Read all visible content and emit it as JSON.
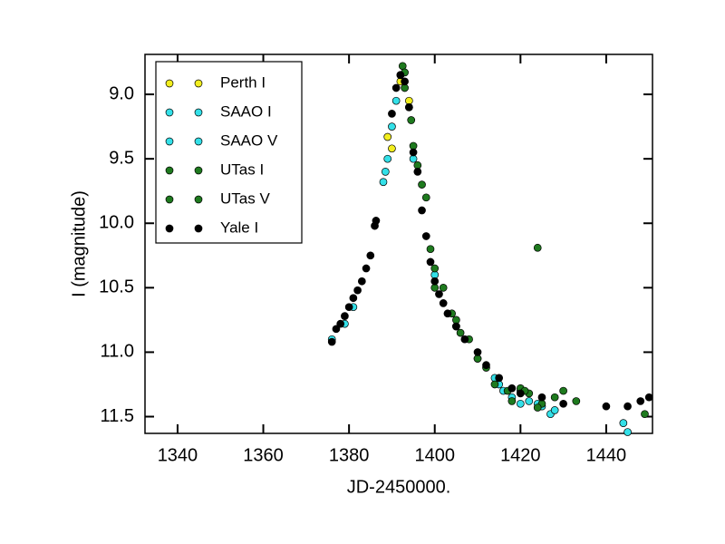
{
  "chart_data": {
    "type": "scatter",
    "x_label": "JD-2450000.",
    "y_label": "I (magnitude)",
    "xlim": [
      1332.4,
      1450.8
    ],
    "xticks": [
      1340,
      1360,
      1380,
      1400,
      1420,
      1440
    ],
    "ylim": [
      11.63,
      8.69
    ],
    "yticks": [
      {
        "value": 9,
        "label": "9.0"
      },
      9.5,
      {
        "value": 10,
        "label": "10.0"
      },
      10.5,
      {
        "value": 11,
        "label": "11.0"
      },
      11.5
    ],
    "legend": "upper left",
    "series": [
      {
        "name": "Perth I",
        "color": "#f2ee1e",
        "x": [
          1389,
          1390,
          1392,
          1394
        ],
        "values": [
          9.33,
          9.42,
          8.9,
          9.05
        ]
      },
      {
        "name": "SAAO I",
        "color": "#33e0e8",
        "x": [
          1376,
          1379,
          1388,
          1388.5,
          1389,
          1390,
          1391,
          1392,
          1400,
          1405,
          1410,
          1414,
          1416,
          1418,
          1420,
          1422,
          1425,
          1427,
          1428,
          1444,
          1445
        ],
        "values": [
          10.9,
          10.78,
          9.68,
          9.6,
          9.5,
          9.25,
          9.05,
          8.85,
          10.4,
          10.8,
          11.05,
          11.2,
          11.3,
          11.35,
          11.3,
          11.38,
          11.42,
          11.48,
          11.45,
          11.55,
          11.62
        ]
      },
      {
        "name": "SAAO V",
        "color": "#33e0e8",
        "x": [
          1381,
          1395,
          1415,
          1420,
          1424
        ],
        "values": [
          10.65,
          9.5,
          11.25,
          11.4,
          11.4
        ]
      },
      {
        "name": "UTas I",
        "color": "#1e7a1e",
        "x": [
          1392.5,
          1393,
          1394,
          1394.5,
          1396,
          1397,
          1398,
          1399,
          1400,
          1402,
          1404,
          1406,
          1408,
          1410,
          1412,
          1414,
          1417,
          1420,
          1422,
          1424,
          1425,
          1428,
          1430,
          1433,
          1449
        ],
        "values": [
          8.78,
          8.83,
          9.1,
          9.2,
          9.55,
          9.7,
          9.8,
          10.2,
          10.35,
          10.5,
          10.7,
          10.85,
          10.9,
          11.05,
          11.12,
          11.25,
          11.3,
          11.28,
          11.32,
          10.19,
          11.4,
          11.35,
          11.3,
          11.38,
          11.48
        ]
      },
      {
        "name": "UTas V",
        "color": "#1e7a1e",
        "x": [
          1393,
          1395,
          1400,
          1405,
          1418,
          1421,
          1424
        ],
        "values": [
          8.95,
          9.4,
          10.5,
          10.75,
          11.38,
          11.3,
          11.43
        ]
      },
      {
        "name": "Yale I",
        "color": "#000000",
        "x": [
          1376,
          1377,
          1378,
          1379,
          1380,
          1381,
          1382,
          1383,
          1384,
          1385,
          1386,
          1386.3,
          1390,
          1391,
          1392,
          1393,
          1394,
          1395,
          1396,
          1397,
          1398,
          1399,
          1400,
          1401,
          1402,
          1403,
          1405,
          1407,
          1410,
          1412,
          1415,
          1418,
          1420,
          1425,
          1430,
          1440,
          1445,
          1448,
          1450
        ],
        "values": [
          10.92,
          10.82,
          10.78,
          10.72,
          10.65,
          10.58,
          10.52,
          10.45,
          10.35,
          10.25,
          10.02,
          9.98,
          9.15,
          8.95,
          8.85,
          8.9,
          9.1,
          9.45,
          9.6,
          9.9,
          10.1,
          10.3,
          10.45,
          10.55,
          10.62,
          10.7,
          10.8,
          10.9,
          11.0,
          11.1,
          11.2,
          11.28,
          11.32,
          11.35,
          11.4,
          11.42,
          11.42,
          11.38,
          11.35
        ]
      }
    ]
  }
}
